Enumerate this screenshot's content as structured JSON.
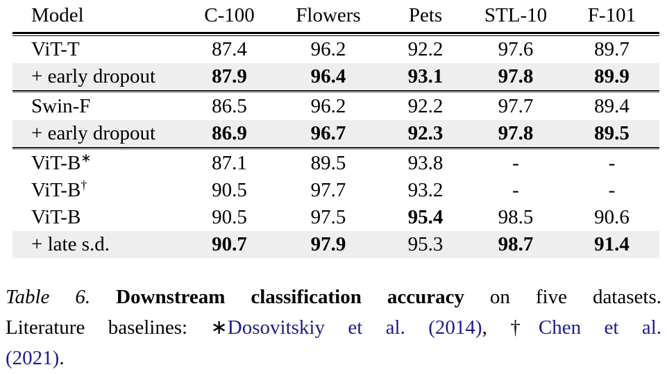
{
  "colors": {
    "link": "#1c1c8e",
    "row_shade": "#eeeeee",
    "rule": "#000000"
  },
  "table": {
    "headers": [
      "Model",
      "C-100",
      "Flowers",
      "Pets",
      "STL-10",
      "F-101"
    ],
    "rows": [
      {
        "label": "ViT-T",
        "sup": "",
        "shaded": false,
        "rule_above": "",
        "values": [
          "87.4",
          "96.2",
          "92.2",
          "97.6",
          "89.7"
        ],
        "bold": [
          0,
          0,
          0,
          0,
          0
        ]
      },
      {
        "label": "+ early dropout",
        "sup": "",
        "shaded": true,
        "rule_above": "",
        "values": [
          "87.9",
          "96.4",
          "93.1",
          "97.8",
          "89.9"
        ],
        "bold": [
          1,
          1,
          1,
          1,
          1
        ]
      },
      {
        "label": "Swin-F",
        "sup": "",
        "shaded": false,
        "rule_above": "mid",
        "values": [
          "86.5",
          "96.2",
          "92.2",
          "97.7",
          "89.4"
        ],
        "bold": [
          0,
          0,
          0,
          0,
          0
        ]
      },
      {
        "label": "+ early dropout",
        "sup": "",
        "shaded": true,
        "rule_above": "",
        "values": [
          "86.9",
          "96.7",
          "92.3",
          "97.8",
          "89.5"
        ],
        "bold": [
          1,
          1,
          1,
          1,
          1
        ]
      },
      {
        "label": "ViT-B",
        "sup": "∗",
        "shaded": false,
        "rule_above": "mid",
        "values": [
          "87.1",
          "89.5",
          "93.8",
          "-",
          "-"
        ],
        "bold": [
          0,
          0,
          0,
          0,
          0
        ]
      },
      {
        "label": "ViT-B",
        "sup": "†",
        "shaded": false,
        "rule_above": "",
        "values": [
          "90.5",
          "97.7",
          "93.2",
          "-",
          "-"
        ],
        "bold": [
          0,
          0,
          0,
          0,
          0
        ]
      },
      {
        "label": "ViT-B",
        "sup": "",
        "shaded": false,
        "rule_above": "",
        "values": [
          "90.5",
          "97.5",
          "95.4",
          "98.5",
          "90.6"
        ],
        "bold": [
          0,
          0,
          1,
          0,
          0
        ]
      },
      {
        "label": "+ late s.d.",
        "sup": "",
        "shaded": true,
        "rule_above": "",
        "values": [
          "90.7",
          "97.9",
          "95.3",
          "98.7",
          "91.4"
        ],
        "bold": [
          1,
          1,
          0,
          1,
          1
        ]
      }
    ]
  },
  "caption": {
    "lines": [
      [
        {
          "text": "Table 6. ",
          "style": "italic"
        },
        {
          "text": "Downstream classification accuracy",
          "style": "bold"
        },
        {
          "text": " on five datasets.",
          "style": "normal"
        }
      ],
      [
        {
          "text": "Literature baselines: ",
          "style": "normal"
        },
        {
          "text": "∗",
          "style": "normal"
        },
        {
          "text": "Dosovitskiy et al. (2014)",
          "style": "link"
        },
        {
          "text": ", ",
          "style": "normal"
        },
        {
          "text": "†",
          "style": "normal"
        },
        {
          "text": "Chen et al.",
          "style": "link"
        }
      ],
      [
        {
          "text": "(2021)",
          "style": "link"
        },
        {
          "text": ".",
          "style": "normal"
        }
      ]
    ]
  }
}
